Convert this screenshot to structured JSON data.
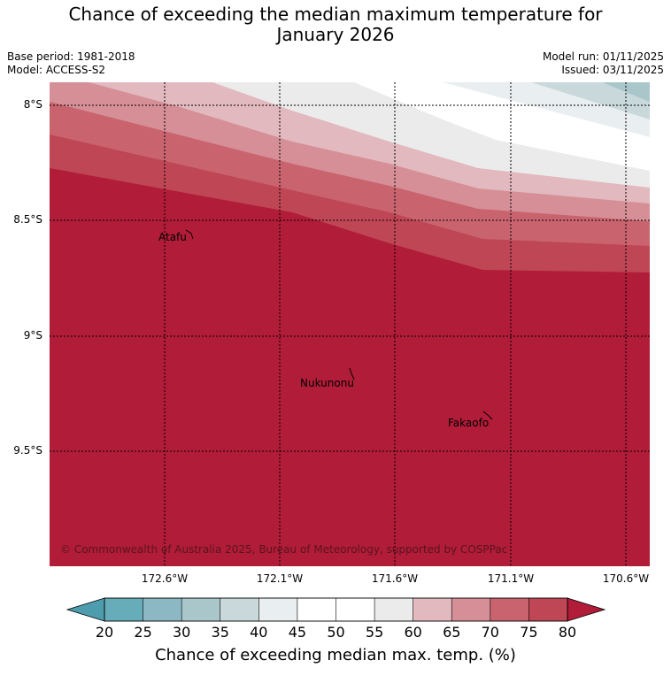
{
  "title_line1": "Chance of exceeding the median maximum temperature for",
  "title_line2": "January 2026",
  "base_period": "Base period: 1981-2018",
  "model": "Model: ACCESS-S2",
  "model_run": "Model run: 01/11/2025",
  "issued": "Issued: 03/11/2025",
  "lat_labels": [
    "8°S",
    "8.5°S",
    "9°S",
    "9.5°S"
  ],
  "lon_labels": [
    "172.6°W",
    "172.1°W",
    "171.6°W",
    "171.1°W",
    "170.6°W"
  ],
  "places": {
    "atafu": "Atafu",
    "nukunonu": "Nukunonu",
    "fakaofo": "Fakaofo"
  },
  "copyright": "© Commonwealth of Australia 2025, Bureau of Meteorology, supported by COSPPac",
  "colorbar": {
    "ticks": [
      "20",
      "25",
      "30",
      "35",
      "40",
      "45",
      "50",
      "55",
      "60",
      "65",
      "70",
      "75",
      "80"
    ],
    "label": "Chance of exceeding median max. temp. (%)",
    "colors": [
      "#67acb9",
      "#8cb8c3",
      "#a9c6cb",
      "#c9d8db",
      "#e9eef0",
      "#ffffff",
      "#ffffff",
      "#ecebec",
      "#e1b9be",
      "#d68f97",
      "#c9646f",
      "#bf4654"
    ],
    "under_color": "#4e9dae",
    "over_color": "#b11c38"
  }
}
